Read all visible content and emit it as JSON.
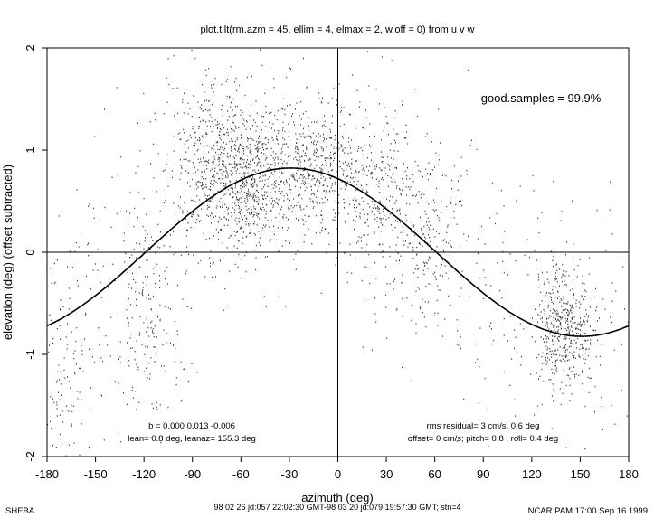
{
  "chart_data": {
    "type": "scatter",
    "title": "plot.tilt(rm.azm = 45, ellim = 4, elmax = 2, w.off = 0) from u v w",
    "xlabel": "azimuth (deg)",
    "ylabel": "elevation (deg)  (offset subtracted)",
    "xlim": [
      -180,
      180
    ],
    "ylim": [
      -2,
      2
    ],
    "x_ticks": [
      -180,
      -150,
      -120,
      -90,
      -60,
      -30,
      0,
      30,
      60,
      90,
      120,
      150,
      180
    ],
    "y_ticks": [
      -2,
      -1,
      0,
      1,
      2
    ],
    "grid": false,
    "reference_lines": {
      "x": 0,
      "y": 0
    },
    "fit_curve": {
      "model": "b1*sin(azimuth) + b2*cos(azimuth) + b0",
      "b0": 0.0,
      "b1": -0.4,
      "b2": 0.72,
      "description": "fitted tilt curve"
    },
    "scatter_clusters": [
      {
        "x_center": -60,
        "x_spread": 18,
        "y_center": 0.75,
        "y_spread": 0.35,
        "n": 900
      },
      {
        "x_center": -15,
        "x_spread": 12,
        "y_center": 0.85,
        "y_spread": 0.3,
        "n": 350
      },
      {
        "x_center": 20,
        "x_spread": 14,
        "y_center": 0.65,
        "y_spread": 0.35,
        "n": 260
      },
      {
        "x_center": 55,
        "x_spread": 12,
        "y_center": 0.2,
        "y_spread": 0.45,
        "n": 200
      },
      {
        "x_center": 140,
        "x_spread": 9,
        "y_center": -0.7,
        "y_spread": 0.3,
        "n": 450
      },
      {
        "x_center": -115,
        "x_spread": 12,
        "y_center": -0.7,
        "y_spread": 0.5,
        "n": 160
      },
      {
        "x_center": -170,
        "x_spread": 8,
        "y_center": -1.4,
        "y_spread": 0.4,
        "n": 70
      },
      {
        "x_center": -85,
        "x_spread": 12,
        "y_center": 1.2,
        "y_spread": 0.35,
        "n": 110
      }
    ],
    "annotations": {
      "good_samples": "good.samples = 99.9%",
      "coef_line1": "b =  0.000  0.013 -0.006",
      "coef_line2": "lean= 0.8 deg, leanaz= 155.3 deg",
      "rms_line1": "rms residual= 3 cm/s, 0.6 deg",
      "rms_line2": "offset= 0 cm/s; pitch= 0.8 , roll= 0.4 deg"
    }
  },
  "footer": {
    "left": "SHEBA",
    "center": "98 02 26 jd:057 22:02:30 GMT-98 03 20 jd:079 19:57:30 GMT; stn=4",
    "right": "NCAR PAM 17:00 Sep 16 1999"
  }
}
